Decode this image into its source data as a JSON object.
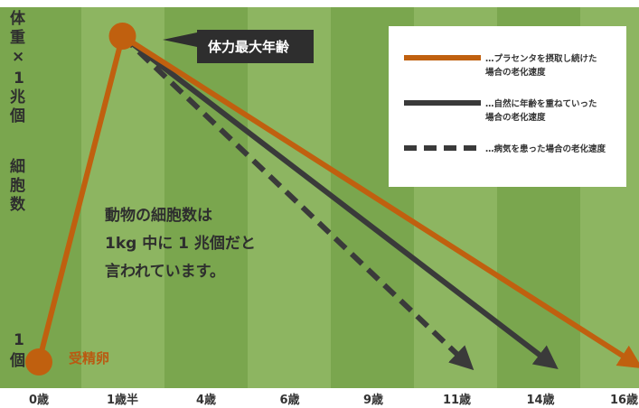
{
  "chart_data": {
    "type": "line",
    "x": [
      "0歳",
      "1歳半",
      "4歳",
      "6歳",
      "9歳",
      "11歳",
      "14歳",
      "16歳"
    ],
    "y_axis_label": [
      "体",
      "重",
      "×",
      "1",
      "兆",
      "個",
      "",
      "細",
      "胞",
      "数"
    ],
    "y_bottom_label": [
      "1",
      "個"
    ],
    "series": [
      {
        "name": "…プラセンタを摂取し続けた場合の老化速度",
        "legend_lines": [
          "…プラセンタを摂取し続けた",
          "場合の老化速度"
        ],
        "color": "#c0600f",
        "style": "solid",
        "points": [
          [
            0,
            0
          ],
          [
            1,
            1
          ],
          [
            7.1,
            0
          ]
        ]
      },
      {
        "name": "…自然に年齢を重ねていった場合の老化速度",
        "legend_lines": [
          "…自然に年齢を重ねていった",
          "場合の老化速度"
        ],
        "color": "#3a3a3a",
        "style": "solid",
        "points": [
          [
            1,
            1
          ],
          [
            6.1,
            0
          ]
        ]
      },
      {
        "name": "…病気を患った場合の老化速度",
        "legend_lines": [
          "…病気を患った場合の老化速度"
        ],
        "color": "#3a3a3a",
        "style": "dashed",
        "points": [
          [
            1,
            1
          ],
          [
            5.1,
            0
          ]
        ]
      }
    ],
    "annotations": {
      "peak": "体力最大年齢",
      "start": "受精卵",
      "note": [
        "動物の細胞数は",
        "1kg 中に 1 兆個だと",
        "言われています。"
      ]
    },
    "colors": {
      "stripe_dark": "#7aa64e",
      "stripe_light": "#8db561",
      "accent": "#c0600f",
      "dark": "#3a3a3a"
    }
  }
}
